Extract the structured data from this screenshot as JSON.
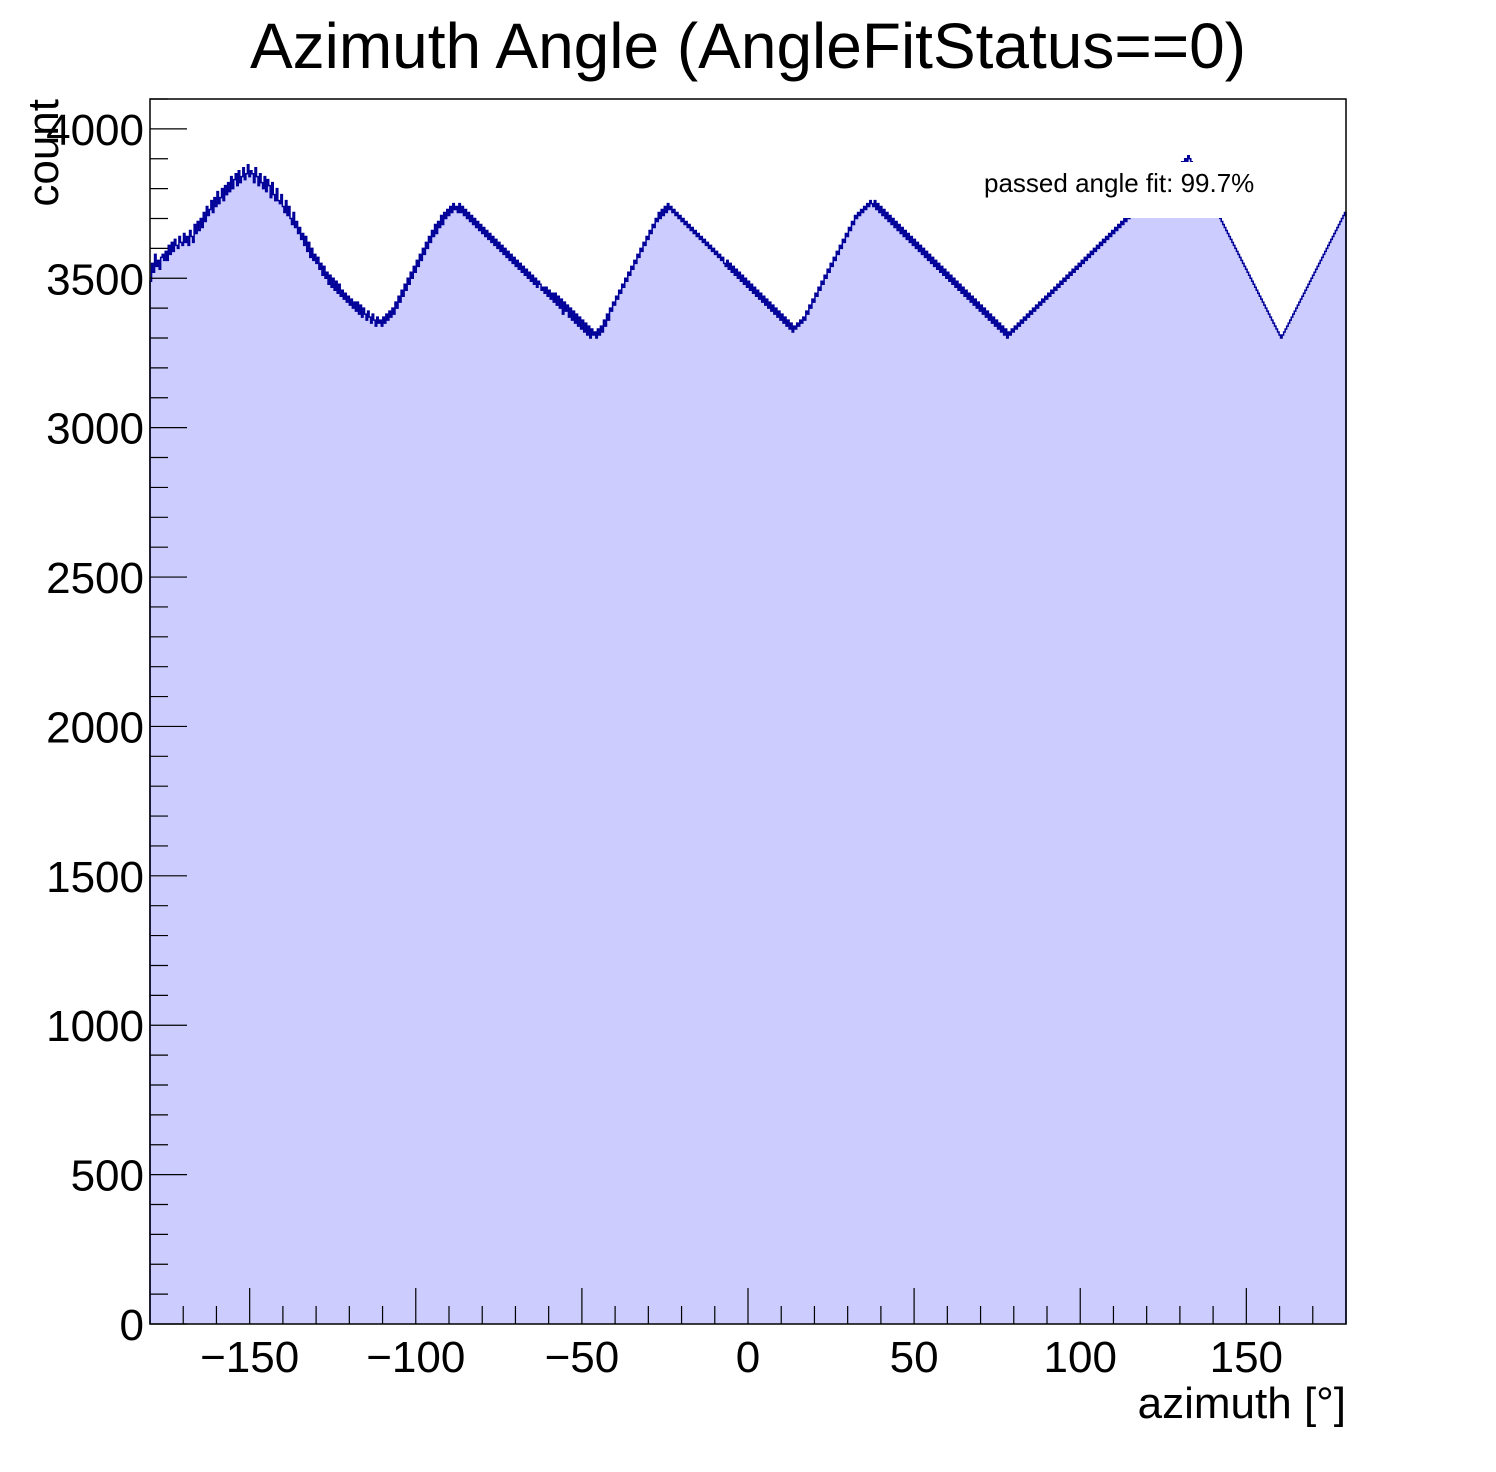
{
  "chart_data": {
    "type": "bar",
    "title": "Azimuth Angle (AngleFitStatus==0)",
    "xlabel": "azimuth [°]",
    "ylabel": "count",
    "xlim": [
      -180,
      180
    ],
    "ylim": [
      0,
      4100
    ],
    "x_ticks": [
      -150,
      -100,
      -50,
      0,
      50,
      100,
      150
    ],
    "x_tick_labels": [
      "−150",
      "−100",
      "−50",
      "0",
      "50",
      "100",
      "150"
    ],
    "y_ticks": [
      0,
      500,
      1000,
      1500,
      2000,
      2500,
      3000,
      3500,
      4000
    ],
    "y_tick_labels": [
      "0",
      "500",
      "1000",
      "1500",
      "2000",
      "2500",
      "3000",
      "3500",
      "4000"
    ],
    "bin_width": 1,
    "series": [
      {
        "values": [
          3490,
          3550,
          3520,
          3580,
          3540,
          3560,
          3530,
          3570,
          3580,
          3560,
          3590,
          3560,
          3610,
          3580,
          3620,
          3590,
          3630,
          3610,
          3600,
          3640,
          3620,
          3610,
          3650,
          3620,
          3640,
          3610,
          3660,
          3640,
          3620,
          3680,
          3650,
          3690,
          3660,
          3700,
          3670,
          3720,
          3690,
          3740,
          3710,
          3730,
          3760,
          3720,
          3770,
          3740,
          3790,
          3750,
          3770,
          3800,
          3760,
          3810,
          3780,
          3820,
          3790,
          3840,
          3800,
          3830,
          3850,
          3810,
          3860,
          3820,
          3840,
          3870,
          3830,
          3850,
          3880,
          3840,
          3860,
          3850,
          3820,
          3870,
          3840,
          3810,
          3850,
          3820,
          3800,
          3840,
          3790,
          3830,
          3810,
          3770,
          3820,
          3780,
          3760,
          3800,
          3760,
          3750,
          3780,
          3740,
          3720,
          3760,
          3710,
          3740,
          3700,
          3680,
          3720,
          3670,
          3690,
          3650,
          3670,
          3630,
          3650,
          3610,
          3640,
          3590,
          3620,
          3570,
          3600,
          3560,
          3580,
          3550,
          3570,
          3530,
          3550,
          3510,
          3540,
          3500,
          3520,
          3480,
          3510,
          3470,
          3500,
          3460,
          3490,
          3450,
          3480,
          3440,
          3460,
          3430,
          3450,
          3420,
          3440,
          3410,
          3430,
          3400,
          3420,
          3390,
          3420,
          3380,
          3410,
          3370,
          3400,
          3380,
          3360,
          3390,
          3370,
          3350,
          3380,
          3360,
          3340,
          3370,
          3350,
          3360,
          3340,
          3370,
          3350,
          3380,
          3360,
          3390,
          3370,
          3400,
          3380,
          3420,
          3400,
          3440,
          3420,
          3460,
          3440,
          3480,
          3460,
          3500,
          3480,
          3520,
          3500,
          3540,
          3520,
          3560,
          3540,
          3580,
          3560,
          3600,
          3580,
          3620,
          3600,
          3640,
          3620,
          3660,
          3640,
          3680,
          3650,
          3690,
          3670,
          3710,
          3680,
          3720,
          3700,
          3730,
          3710,
          3740,
          3720,
          3750,
          3730,
          3740,
          3720,
          3750,
          3720,
          3740,
          3710,
          3730,
          3700,
          3720,
          3690,
          3710,
          3680,
          3700,
          3670,
          3690,
          3660,
          3680,
          3650,
          3670,
          3640,
          3660,
          3630,
          3650,
          3620,
          3640,
          3610,
          3630,
          3600,
          3620,
          3590,
          3610,
          3580,
          3600,
          3570,
          3590,
          3560,
          3580,
          3550,
          3570,
          3540,
          3560,
          3530,
          3550,
          3520,
          3540,
          3510,
          3530,
          3500,
          3520,
          3490,
          3510,
          3480,
          3500,
          3470,
          3490,
          3480,
          3460,
          3470,
          3450,
          3470,
          3440,
          3460,
          3430,
          3450,
          3420,
          3450,
          3410,
          3440,
          3400,
          3430,
          3380,
          3420,
          3390,
          3410,
          3370,
          3400,
          3360,
          3390,
          3350,
          3380,
          3340,
          3370,
          3330,
          3360,
          3320,
          3350,
          3310,
          3340,
          3300,
          3330,
          3310,
          3320,
          3300,
          3330,
          3310,
          3340,
          3320,
          3360,
          3340,
          3380,
          3360,
          3400,
          3390,
          3420,
          3410,
          3440,
          3430,
          3460,
          3450,
          3480,
          3470,
          3500,
          3490,
          3520,
          3510,
          3540,
          3530,
          3560,
          3550,
          3580,
          3570,
          3600,
          3590,
          3620,
          3610,
          3640,
          3630,
          3660,
          3650,
          3680,
          3670,
          3700,
          3690,
          3720,
          3700,
          3730,
          3710,
          3740,
          3720,
          3750,
          3730,
          3740,
          3720,
          3730,
          3710,
          3720,
          3700,
          3710,
          3690,
          3700,
          3680,
          3690,
          3670,
          3680,
          3660,
          3670,
          3650,
          3660,
          3640,
          3650,
          3630,
          3640,
          3620,
          3630,
          3610,
          3620,
          3600,
          3610,
          3590,
          3600,
          3580,
          3590,
          3570,
          3580,
          3560,
          3570,
          3550,
          3540,
          3560,
          3530,
          3550,
          3520,
          3540,
          3510,
          3530,
          3500,
          3520,
          3490,
          3510,
          3480,
          3500,
          3470,
          3490,
          3460,
          3480,
          3450,
          3470,
          3440,
          3460,
          3430,
          3450,
          3420,
          3440,
          3410,
          3430,
          3400,
          3420,
          3390,
          3410,
          3380,
          3400,
          3370,
          3390,
          3360,
          3380,
          3350,
          3370,
          3340,
          3360,
          3330,
          3350,
          3320,
          3340,
          3330,
          3350,
          3340,
          3360,
          3350,
          3370,
          3360,
          3390,
          3380,
          3410,
          3400,
          3430,
          3420,
          3450,
          3440,
          3470,
          3460,
          3490,
          3480,
          3510,
          3500,
          3530,
          3520,
          3550,
          3540,
          3570,
          3560,
          3590,
          3580,
          3610,
          3600,
          3630,
          3620,
          3650,
          3640,
          3670,
          3660,
          3690,
          3680,
          3710,
          3700,
          3720,
          3710,
          3730,
          3720,
          3740,
          3730,
          3750,
          3740,
          3760,
          3750,
          3740,
          3760,
          3730,
          3750,
          3720,
          3740,
          3710,
          3730,
          3700,
          3720,
          3690,
          3710,
          3680,
          3700,
          3670,
          3690,
          3660,
          3680,
          3650,
          3670,
          3640,
          3660,
          3630,
          3650,
          3620,
          3640,
          3610,
          3630,
          3600,
          3620,
          3590,
          3610,
          3580,
          3600,
          3570,
          3590,
          3560,
          3580,
          3550,
          3570,
          3540,
          3560,
          3530,
          3550,
          3520,
          3540,
          3510,
          3530,
          3500,
          3520,
          3490,
          3510,
          3480,
          3500,
          3470,
          3490,
          3460,
          3480,
          3450,
          3470,
          3440,
          3460,
          3430,
          3450,
          3420,
          3440,
          3410,
          3430,
          3400,
          3420,
          3390,
          3410,
          3380,
          3400,
          3370,
          3390,
          3360,
          3380,
          3350,
          3370,
          3340,
          3360,
          3330,
          3350,
          3320,
          3340,
          3310,
          3330,
          3300,
          3320,
          3310,
          3330,
          3320,
          3340,
          3330,
          3350,
          3340,
          3360,
          3350,
          3370,
          3360,
          3380,
          3370,
          3390,
          3380,
          3400,
          3390,
          3410,
          3400,
          3420,
          3410,
          3430,
          3420,
          3440,
          3430,
          3450,
          3440,
          3460,
          3450,
          3470,
          3460,
          3480,
          3470,
          3490,
          3480,
          3500,
          3490,
          3510,
          3500,
          3520,
          3510,
          3530,
          3520,
          3540,
          3530,
          3550,
          3540,
          3560,
          3550,
          3570,
          3560,
          3580,
          3570,
          3590,
          3580,
          3600,
          3590,
          3610,
          3600,
          3620,
          3610,
          3630,
          3620,
          3640,
          3630,
          3650,
          3640,
          3660,
          3650,
          3670,
          3660,
          3680,
          3670,
          3690,
          3680,
          3700,
          3690,
          3710,
          3700,
          3720,
          3710,
          3730,
          3720,
          3740,
          3730,
          3750,
          3740,
          3760,
          3750,
          3770,
          3760,
          3780,
          3770,
          3790,
          3780,
          3800,
          3790,
          3810,
          3800,
          3820,
          3810,
          3830,
          3820,
          3840,
          3830,
          3850,
          3840,
          3860,
          3850,
          3870,
          3860,
          3880,
          3870,
          3890,
          3880,
          3900,
          3890,
          3910,
          3900,
          3890,
          3880,
          3870,
          3860,
          3850,
          3840,
          3830,
          3820,
          3810,
          3800,
          3790,
          3780,
          3770,
          3760,
          3750,
          3740,
          3730,
          3720,
          3710,
          3700,
          3690,
          3680,
          3670,
          3660,
          3650,
          3640,
          3630,
          3620,
          3610,
          3600,
          3590,
          3580,
          3570,
          3560,
          3550,
          3540,
          3530,
          3520,
          3510,
          3500,
          3490,
          3480,
          3470,
          3460,
          3450,
          3440,
          3430,
          3420,
          3410,
          3400,
          3390,
          3380,
          3370,
          3360,
          3350,
          3340,
          3330,
          3320,
          3310,
          3300,
          3310,
          3320,
          3330,
          3340,
          3350,
          3360,
          3370,
          3380,
          3390,
          3400,
          3410,
          3420,
          3430,
          3440,
          3450,
          3460,
          3470,
          3480,
          3490,
          3500,
          3510,
          3520,
          3530,
          3540,
          3550,
          3560,
          3570,
          3580,
          3590,
          3600,
          3610,
          3620,
          3630,
          3640,
          3650,
          3660,
          3670,
          3680,
          3690,
          3700,
          3710,
          3720
        ]
      }
    ],
    "colors": {
      "fill": "#ccccff",
      "line": "#000099",
      "frame": "#000000"
    },
    "annotation": "passed angle fit: 99.7%"
  }
}
